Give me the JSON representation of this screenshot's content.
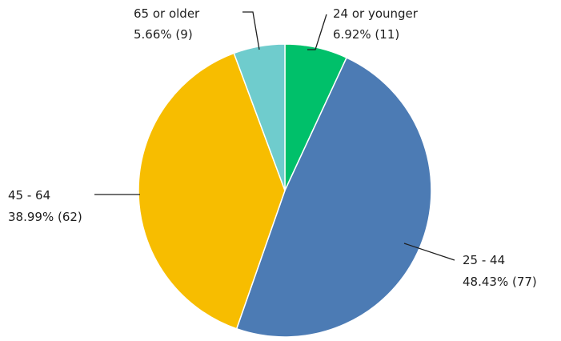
{
  "chart_data": {
    "type": "pie",
    "title": "",
    "start_angle_deg": 0,
    "direction": "clockwise",
    "legend": "none",
    "slices": [
      {
        "name": "24 or younger",
        "percent_label": "6.92% (11)",
        "percent": 6.92,
        "count": 11,
        "color": "#00c06a"
      },
      {
        "name": "25 - 44",
        "percent_label": "48.43% (77)",
        "percent": 48.43,
        "count": 77,
        "color": "#4c7bb4"
      },
      {
        "name": "45 - 64",
        "percent_label": "38.99% (62)",
        "percent": 38.99,
        "count": 62,
        "color": "#f7bd00"
      },
      {
        "name": "65 or older",
        "percent_label": "5.66% (9)",
        "percent": 5.66,
        "count": 9,
        "color": "#6fcccd"
      }
    ]
  }
}
